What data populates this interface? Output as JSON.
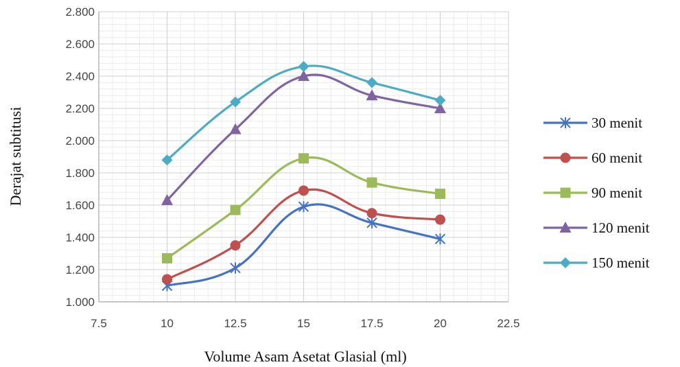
{
  "chart_data": {
    "type": "line",
    "xlabel": "Volume Asam Asetat Glasial (ml)",
    "ylabel": "Derajat subtitusi",
    "xlim": [
      7.5,
      22.5
    ],
    "ylim": [
      1.0,
      2.8
    ],
    "x_ticks": [
      "7.5",
      "10",
      "12.5",
      "15",
      "17.5",
      "20",
      "22.5"
    ],
    "y_ticks": [
      "1.000",
      "1.200",
      "1.400",
      "1.600",
      "1.800",
      "2.000",
      "2.200",
      "2.400",
      "2.600",
      "2.800"
    ],
    "grid": true,
    "smooth": true,
    "legend_position": "right",
    "x": [
      10,
      12.5,
      15,
      17.5,
      20
    ],
    "series": [
      {
        "name": "30 menit",
        "values": [
          1.1,
          1.21,
          1.59,
          1.49,
          1.39
        ],
        "color": "#4472c4",
        "marker": "star"
      },
      {
        "name": "60 menit",
        "values": [
          1.14,
          1.35,
          1.69,
          1.55,
          1.51
        ],
        "color": "#c0504d",
        "marker": "circle"
      },
      {
        "name": "90 menit",
        "values": [
          1.27,
          1.57,
          1.89,
          1.74,
          1.67
        ],
        "color": "#9bbb59",
        "marker": "square"
      },
      {
        "name": "120 menit",
        "values": [
          1.63,
          2.07,
          2.4,
          2.28,
          2.2
        ],
        "color": "#8064a2",
        "marker": "triangle"
      },
      {
        "name": "150 menit",
        "values": [
          1.88,
          2.24,
          2.46,
          2.36,
          2.25
        ],
        "color": "#4bacc6",
        "marker": "diamond"
      }
    ]
  }
}
